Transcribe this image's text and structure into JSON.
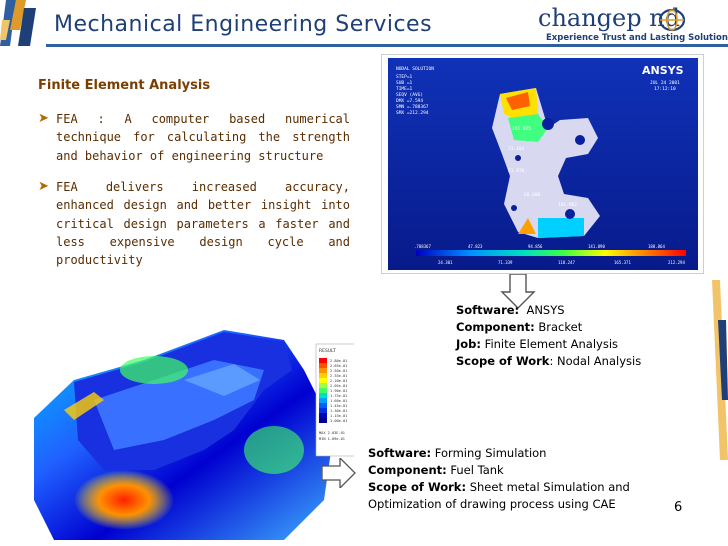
{
  "header": {
    "title": "Mechanical Engineering Services",
    "logo_text": "changep   nd",
    "logo_tagline": "Experience Trust and Lasting Solutions"
  },
  "content": {
    "section_heading": "Finite Element Analysis",
    "bullets": [
      "FEA : A computer based numerical technique for calculating the strength and behavior of engineering structure",
      "FEA delivers increased accuracy, enhanced design and better insight into critical design parameters a faster and less expensive design cycle and productivity"
    ]
  },
  "ansys_image": {
    "header_left": [
      "NODAL SOLUTION",
      "STEP=1",
      "SUB =1",
      "TIME=1",
      "SEQV (AVG)",
      "DMX =7.594",
      "SMN =.788367",
      "SMX =212.294"
    ],
    "brand": "ANSYS",
    "date": "JUL 24 2001",
    "time": "17:12:10",
    "labels": [
      "165.025",
      "73.104",
      "21.070",
      "68.608",
      "101.982"
    ],
    "legend_top": [
      ".788367",
      "47.823",
      "94.856",
      "141.890",
      "188.864"
    ],
    "legend_bottom": [
      "24.301",
      "71.339",
      "118.247",
      "165.371",
      "212.294"
    ]
  },
  "info_ansys": {
    "software_label": "Software:",
    "software": "ANSYS",
    "component_label": "Component:",
    "component": "Bracket",
    "job_label": "Job:",
    "job": "Finite Element Analysis",
    "scope_label": "Scope of Work",
    "scope": ": Nodal Analysis"
  },
  "info_forming": {
    "software_label": "Software:",
    "software": "Forming Simulation",
    "component_label": "Component:",
    "component": "Fuel Tank",
    "scope_label": "Scope of Work:",
    "scope": "Sheet metal Simulation and",
    "scope_line2": "Optimization of drawing process using CAE"
  },
  "tank_legend": {
    "title": "RESULT",
    "values": [
      "2.80e-01",
      "2.65e-01",
      "2.50e-01",
      "2.35e-01",
      "2.20e-01",
      "2.05e-01",
      "1.90e-01",
      "1.75e-01",
      "1.60e-01",
      "1.45e-01",
      "1.30e-01",
      "1.15e-01",
      "1.00e-01"
    ],
    "footer": [
      "MAX 2.83E-01",
      "MIN 1.09e-01"
    ]
  },
  "page_number": "6",
  "colors": {
    "title": "#1f3f77",
    "heading": "#7a3f00",
    "body_text": "#5a2d00",
    "bullet": "#b26b00",
    "ansys_bg": "#0a1f9e"
  }
}
